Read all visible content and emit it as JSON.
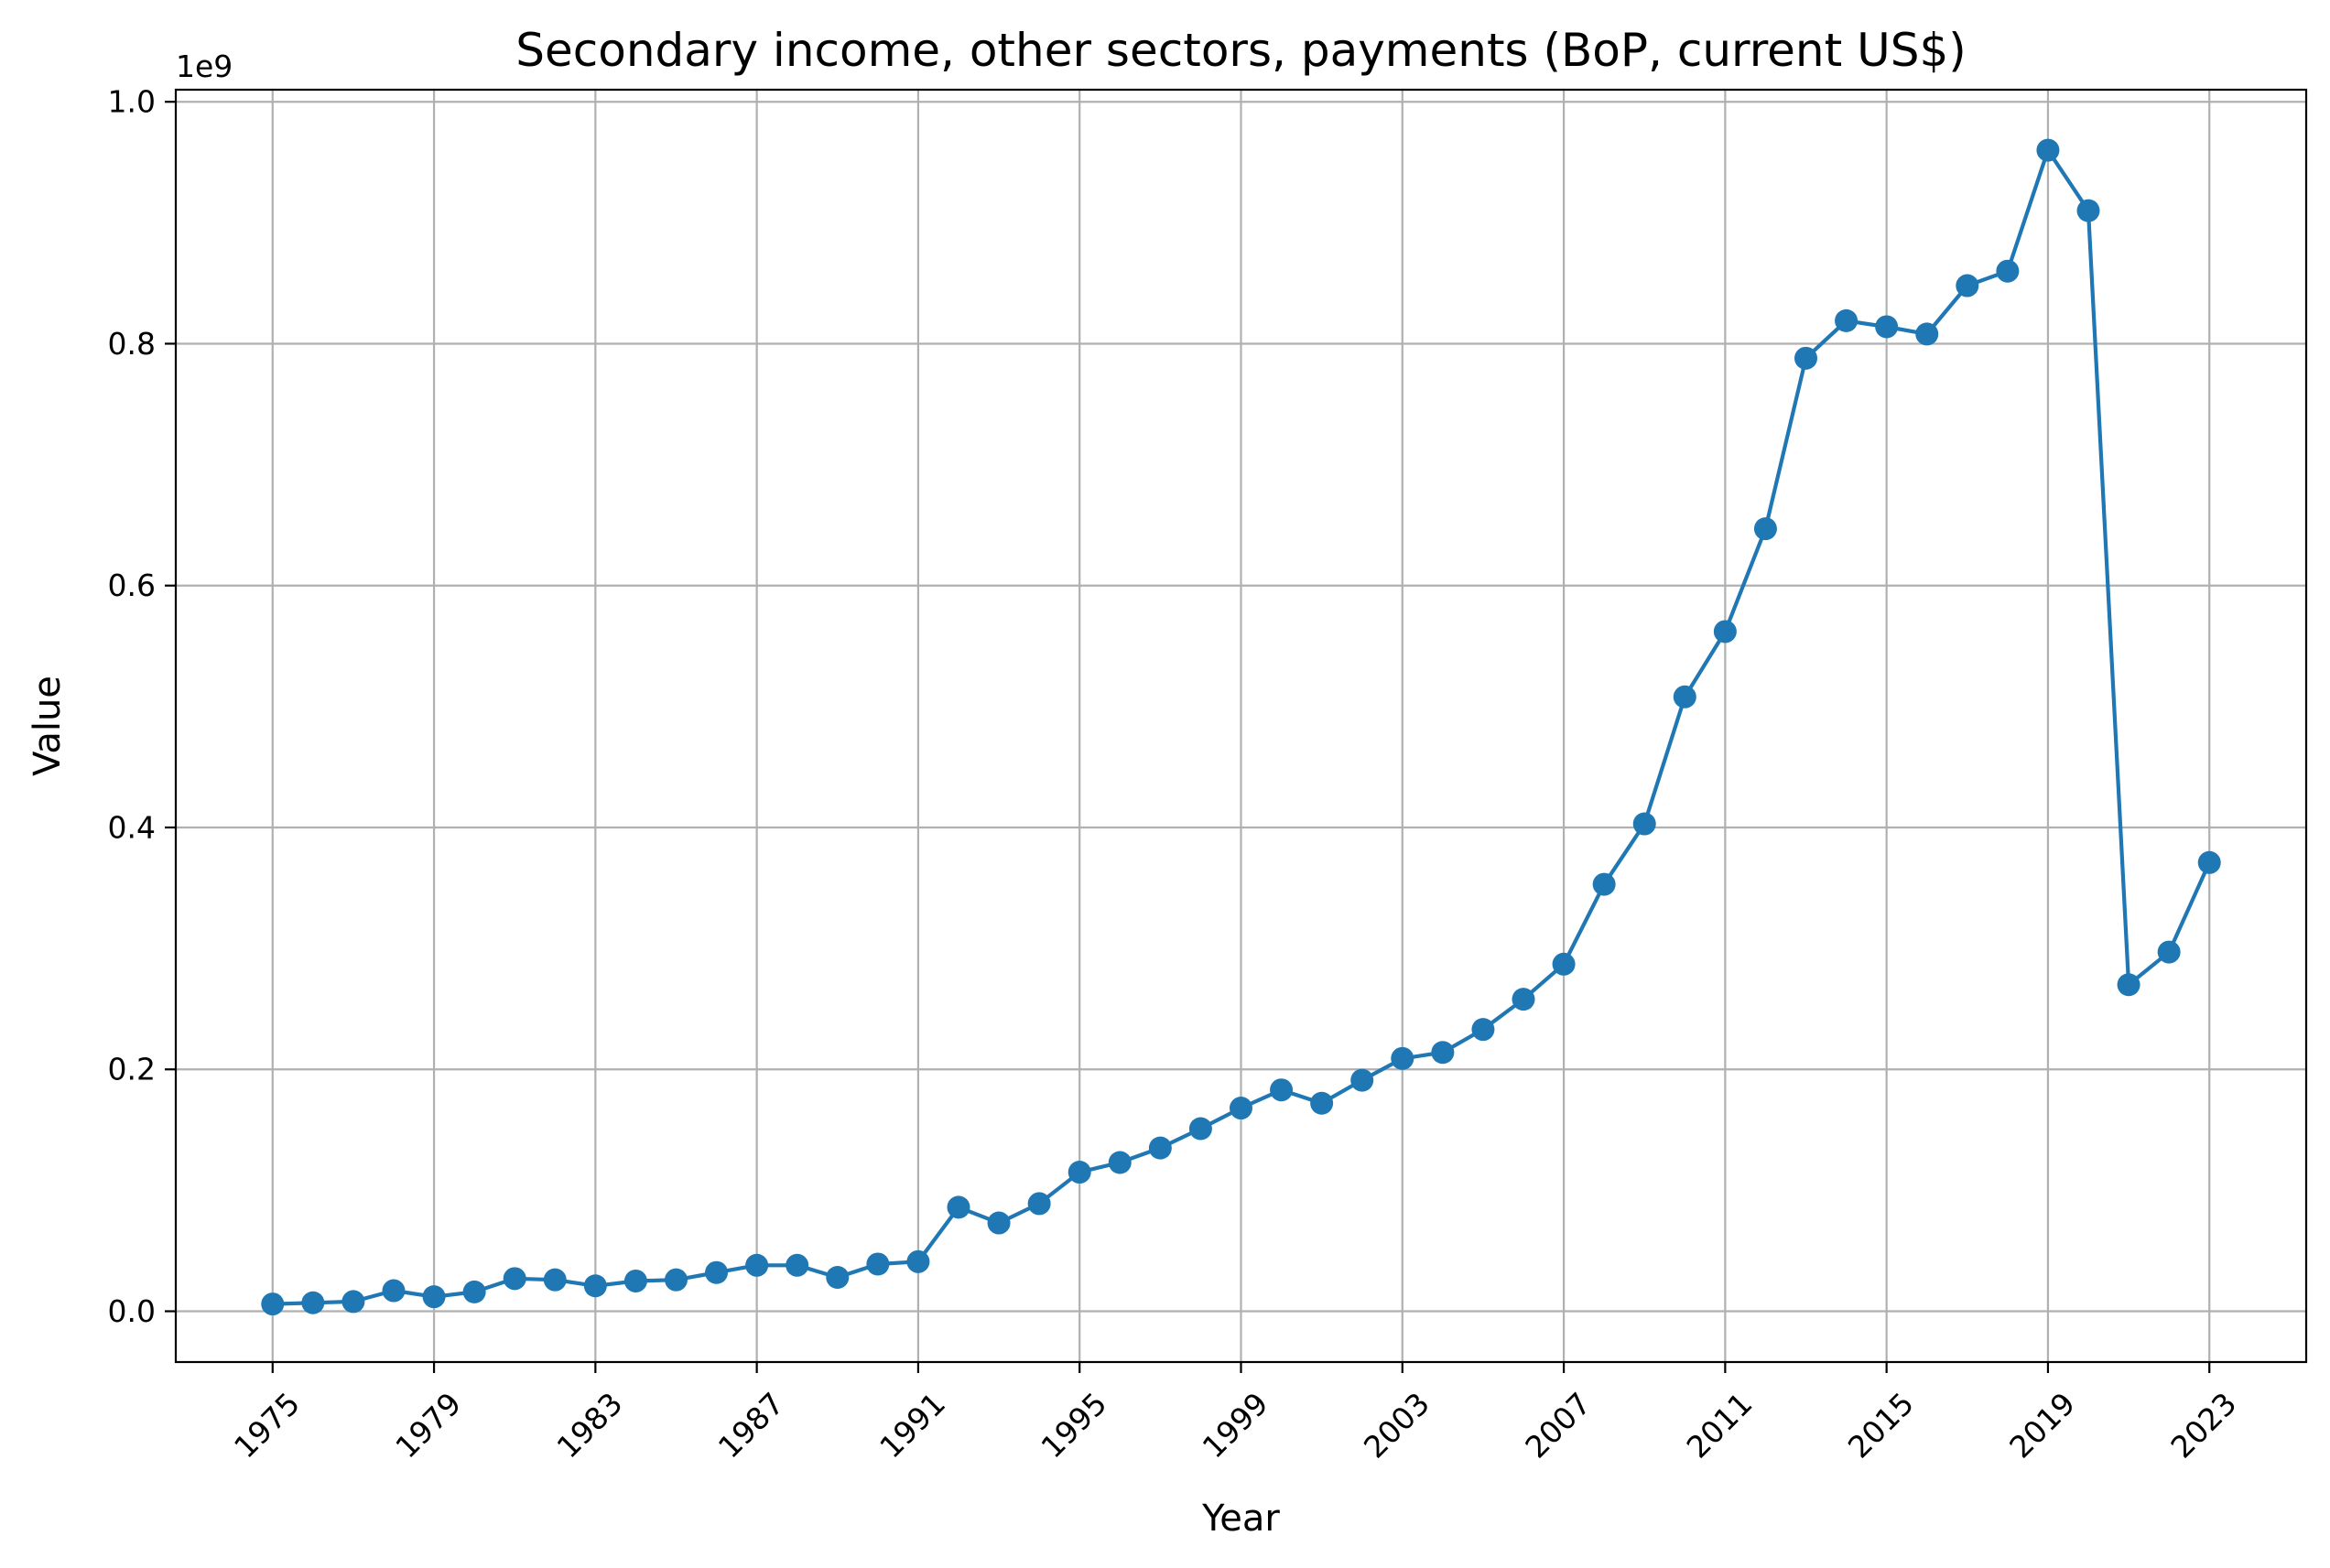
{
  "chart_data": {
    "type": "line",
    "title": "Secondary income, other sectors, payments (BoP, current US$)",
    "xlabel": "Year",
    "ylabel": "Value",
    "y_offset_text": "1e9",
    "xlim": [
      1972.6,
      2025.4
    ],
    "ylim": [
      -0.042,
      1.01
    ],
    "x_ticks": [
      1975,
      1979,
      1983,
      1987,
      1991,
      1995,
      1999,
      2003,
      2007,
      2011,
      2015,
      2019,
      2023
    ],
    "x_tick_labels": [
      "1975",
      "1979",
      "1983",
      "1987",
      "1991",
      "1995",
      "1999",
      "2003",
      "2007",
      "2011",
      "2015",
      "2019",
      "2023"
    ],
    "y_ticks": [
      0.0,
      0.2,
      0.4,
      0.6,
      0.8,
      1.0
    ],
    "y_tick_labels": [
      "0.0",
      "0.2",
      "0.4",
      "0.6",
      "0.8",
      "1.0"
    ],
    "grid": true,
    "color": "#1f77b4",
    "series": [
      {
        "x": [
          1975,
          1976,
          1977,
          1978,
          1979,
          1980,
          1981,
          1982,
          1983,
          1984,
          1985,
          1986,
          1987,
          1988,
          1989,
          1990,
          1991,
          1992,
          1993,
          1994,
          1995,
          1996,
          1997,
          1998,
          1999,
          2000,
          2001,
          2002,
          2003,
          2004,
          2005,
          2006,
          2007,
          2008,
          2009,
          2010,
          2011,
          2012,
          2013,
          2014,
          2015,
          2016,
          2017,
          2018,
          2019,
          2020,
          2021,
          2022,
          2023
        ],
        "values": [
          0.006,
          0.007,
          0.008,
          0.017,
          0.012,
          0.016,
          0.027,
          0.026,
          0.021,
          0.025,
          0.026,
          0.032,
          0.038,
          0.038,
          0.028,
          0.039,
          0.041,
          0.086,
          0.073,
          0.089,
          0.115,
          0.123,
          0.135,
          0.151,
          0.168,
          0.183,
          0.172,
          0.191,
          0.209,
          0.214,
          0.233,
          0.258,
          0.287,
          0.353,
          0.403,
          0.508,
          0.562,
          0.647,
          0.788,
          0.819,
          0.814,
          0.808,
          0.848,
          0.86,
          0.96,
          0.91,
          0.27,
          0.297,
          0.371
        ]
      }
    ]
  }
}
